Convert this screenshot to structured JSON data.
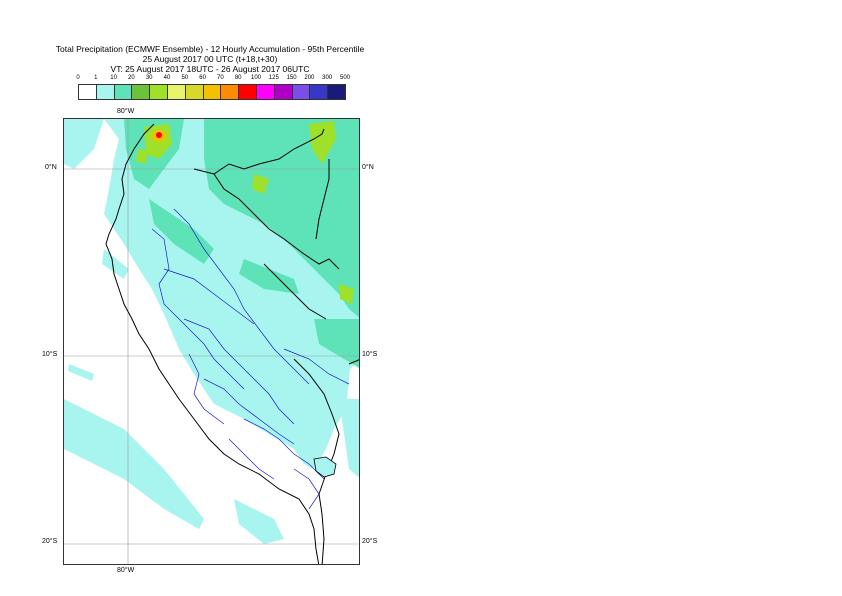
{
  "title": {
    "line1": "Total Precipitation (ECMWF Ensemble) - 12 Hourly Accumulation - 95th Percentile",
    "line2": "25 August 2017 00 UTC (t+18,t+30)",
    "line3": "VT: 25 August 2017 18UTC - 26 August 2017 06UTC"
  },
  "legend": {
    "labels": [
      "0",
      "1",
      "10",
      "20",
      "30",
      "40",
      "50",
      "60",
      "70",
      "80",
      "100",
      "125",
      "150",
      "200",
      "300",
      "500"
    ],
    "colors": [
      "#ffffff",
      "#a8f5f0",
      "#5ee3b8",
      "#6cc23a",
      "#9ee02a",
      "#e8f56a",
      "#d8d82a",
      "#f5c000",
      "#ff8c00",
      "#ff0000",
      "#ff00ff",
      "#b000c8",
      "#7a4ee8",
      "#3838c8",
      "#1a1a78"
    ]
  },
  "axes": {
    "lat_labels": [
      "0°N",
      "10°S",
      "20°S"
    ],
    "lon_label_top": "80°W",
    "lon_label_bottom": "80°W"
  },
  "colors": {
    "light_rain": "#a8f5f0",
    "moderate_rain": "#5ee3b8",
    "heavy_rain": "#9ee02a",
    "border_line": "#000000",
    "admin_line": "#1a1ac8",
    "grid_line": "#999999"
  }
}
